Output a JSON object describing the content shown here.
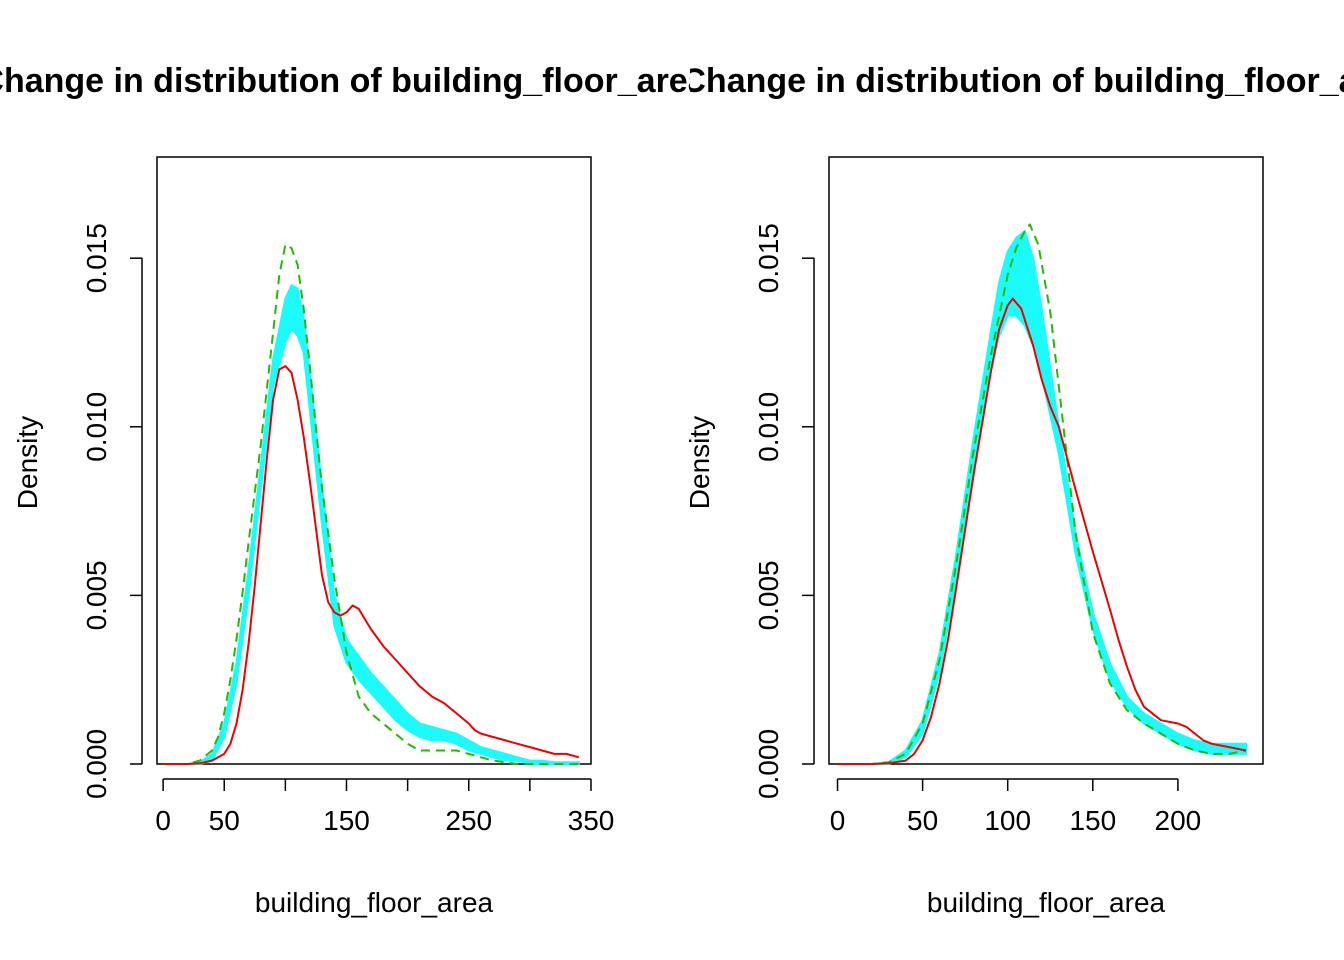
{
  "chart_data": [
    {
      "type": "line",
      "title": "Change in distribution of building_floor_area",
      "xlabel": "building_floor_area",
      "ylabel": "Density",
      "xlim": [
        -5,
        350
      ],
      "ylim": [
        0,
        0.018
      ],
      "x_ticks": [
        0,
        50,
        150,
        250,
        350
      ],
      "y_ticks": [
        0,
        0.005,
        0.01,
        0.015
      ],
      "x_tick_labels": [
        "0",
        "50",
        "150",
        "250",
        "350"
      ],
      "y_tick_labels": [
        "0.000",
        "0.005",
        "0.010",
        "0.015"
      ],
      "colors": {
        "band": "#1cfbfb",
        "red": "#ee0000",
        "green": "#22bb00"
      },
      "band": {
        "x": [
          0,
          20,
          30,
          40,
          50,
          60,
          70,
          80,
          90,
          100,
          105,
          110,
          115,
          120,
          130,
          140,
          150,
          160,
          170,
          180,
          190,
          200,
          210,
          220,
          230,
          240,
          250,
          260,
          270,
          280,
          290,
          300,
          310,
          320,
          330,
          340
        ],
        "upper": [
          0,
          0,
          5e-05,
          0.0003,
          0.0012,
          0.003,
          0.0058,
          0.0089,
          0.012,
          0.0138,
          0.0142,
          0.0141,
          0.0132,
          0.0116,
          0.0082,
          0.005,
          0.0037,
          0.0032,
          0.0027,
          0.0023,
          0.0019,
          0.0015,
          0.0012,
          0.0011,
          0.001,
          0.0009,
          0.0007,
          0.0005,
          0.0004,
          0.0003,
          0.0002,
          0.0001,
          0.0001,
          5e-05,
          5e-05,
          5e-05
        ],
        "lower": [
          0,
          0,
          0,
          0.0001,
          0.0008,
          0.0024,
          0.005,
          0.0082,
          0.0112,
          0.0125,
          0.0129,
          0.0127,
          0.0122,
          0.0105,
          0.0071,
          0.0041,
          0.003,
          0.0025,
          0.0021,
          0.0017,
          0.0013,
          0.001,
          0.0008,
          0.0007,
          0.0007,
          0.0006,
          0.0004,
          0.0003,
          0.0002,
          0.0001,
          0.0001,
          0,
          0,
          0,
          0,
          0
        ]
      },
      "series": [
        {
          "style": "solid",
          "color": "#ee0000",
          "x": [
            0,
            20,
            30,
            40,
            50,
            55,
            60,
            65,
            70,
            75,
            80,
            85,
            90,
            95,
            100,
            105,
            110,
            115,
            120,
            125,
            130,
            135,
            140,
            145,
            150,
            155,
            160,
            165,
            170,
            180,
            190,
            200,
            210,
            220,
            230,
            240,
            250,
            255,
            260,
            270,
            280,
            290,
            300,
            310,
            320,
            330,
            340
          ],
          "y": [
            0,
            0,
            2e-05,
            0.0001,
            0.0003,
            0.0006,
            0.0012,
            0.0022,
            0.0036,
            0.0053,
            0.0072,
            0.0091,
            0.0108,
            0.0117,
            0.0118,
            0.0116,
            0.0108,
            0.0097,
            0.0084,
            0.007,
            0.0056,
            0.0048,
            0.0045,
            0.0044,
            0.0045,
            0.0047,
            0.0046,
            0.0043,
            0.004,
            0.0035,
            0.0031,
            0.0027,
            0.0023,
            0.002,
            0.0018,
            0.0015,
            0.0012,
            0.001,
            0.0009,
            0.0008,
            0.0007,
            0.0006,
            0.0005,
            0.0004,
            0.0003,
            0.0003,
            0.0002
          ]
        },
        {
          "style": "dashed",
          "color": "#22bb00",
          "x": [
            0,
            20,
            30,
            40,
            45,
            50,
            55,
            60,
            65,
            70,
            80,
            90,
            95,
            100,
            105,
            110,
            115,
            120,
            125,
            130,
            140,
            150,
            160,
            170,
            180,
            190,
            200,
            210,
            220,
            230,
            240,
            250,
            260,
            270,
            280,
            290,
            300,
            310,
            320,
            330,
            340
          ],
          "y": [
            0,
            0,
            0.0001,
            0.0004,
            0.0008,
            0.0015,
            0.0025,
            0.0037,
            0.0051,
            0.0066,
            0.0095,
            0.0128,
            0.0145,
            0.0154,
            0.0153,
            0.0148,
            0.0135,
            0.0118,
            0.01,
            0.0082,
            0.0055,
            0.0033,
            0.002,
            0.0015,
            0.0012,
            0.0009,
            0.0006,
            0.0004,
            0.0004,
            0.0004,
            0.0004,
            0.0003,
            0.0002,
            0.0001,
            5e-05,
            0,
            0,
            0,
            0,
            0,
            0
          ]
        }
      ]
    },
    {
      "type": "line",
      "title": "Change in distribution of building_floor_area",
      "xlabel": "building_floor_area",
      "ylabel": "Density",
      "xlim": [
        -5,
        250
      ],
      "ylim": [
        0,
        0.018
      ],
      "x_ticks": [
        0,
        50,
        100,
        150,
        200
      ],
      "y_ticks": [
        0,
        0.005,
        0.01,
        0.015
      ],
      "x_tick_labels": [
        "0",
        "50",
        "100",
        "150",
        "200"
      ],
      "y_tick_labels": [
        "0.000",
        "0.005",
        "0.010",
        "0.015"
      ],
      "colors": {
        "band": "#1cfbfb",
        "red": "#ee0000",
        "green": "#22bb00"
      },
      "band": {
        "x": [
          0,
          20,
          30,
          40,
          50,
          60,
          70,
          80,
          90,
          95,
          100,
          105,
          110,
          115,
          120,
          130,
          140,
          150,
          160,
          170,
          180,
          190,
          200,
          210,
          220,
          230,
          240
        ],
        "upper": [
          0,
          0,
          5e-05,
          0.0004,
          0.0013,
          0.0033,
          0.0063,
          0.0097,
          0.0128,
          0.0143,
          0.0152,
          0.0156,
          0.0158,
          0.015,
          0.0135,
          0.01,
          0.0068,
          0.0045,
          0.003,
          0.002,
          0.0015,
          0.0012,
          0.0009,
          0.0007,
          0.0006,
          0.0006,
          0.0006
        ],
        "lower": [
          0,
          0,
          0,
          0.0002,
          0.0009,
          0.0027,
          0.0055,
          0.0088,
          0.0117,
          0.0127,
          0.0133,
          0.0133,
          0.013,
          0.0124,
          0.0115,
          0.0092,
          0.0062,
          0.004,
          0.0025,
          0.0017,
          0.0012,
          0.0009,
          0.0006,
          0.0004,
          0.0003,
          0.0003,
          0.0003
        ]
      },
      "series": [
        {
          "style": "solid",
          "color": "#ee0000",
          "x": [
            0,
            20,
            30,
            40,
            45,
            50,
            55,
            60,
            65,
            70,
            80,
            90,
            95,
            100,
            103,
            108,
            115,
            120,
            125,
            130,
            140,
            150,
            160,
            165,
            170,
            175,
            180,
            190,
            200,
            205,
            210,
            215,
            220,
            230,
            240
          ],
          "y": [
            0,
            0,
            2e-05,
            0.0001,
            0.0003,
            0.0007,
            0.0014,
            0.0024,
            0.0037,
            0.0053,
            0.0086,
            0.0116,
            0.0129,
            0.0136,
            0.0138,
            0.0135,
            0.0124,
            0.0114,
            0.0106,
            0.01,
            0.0081,
            0.0063,
            0.0046,
            0.0037,
            0.0029,
            0.0022,
            0.0017,
            0.0013,
            0.0012,
            0.0011,
            0.0009,
            0.0007,
            0.0006,
            0.0005,
            0.0004
          ]
        },
        {
          "style": "dashed",
          "color": "#22bb00",
          "x": [
            0,
            20,
            30,
            40,
            50,
            60,
            70,
            80,
            90,
            100,
            105,
            110,
            113,
            118,
            125,
            130,
            140,
            150,
            160,
            170,
            180,
            190,
            200,
            210,
            220,
            230,
            240
          ],
          "y": [
            0,
            0,
            5e-05,
            0.0003,
            0.0012,
            0.0031,
            0.006,
            0.0093,
            0.0121,
            0.0145,
            0.0153,
            0.0158,
            0.016,
            0.0154,
            0.0134,
            0.0112,
            0.0068,
            0.0039,
            0.0024,
            0.0016,
            0.0012,
            0.0009,
            0.0006,
            0.0004,
            0.0003,
            0.0003,
            0.0004
          ]
        }
      ]
    }
  ]
}
